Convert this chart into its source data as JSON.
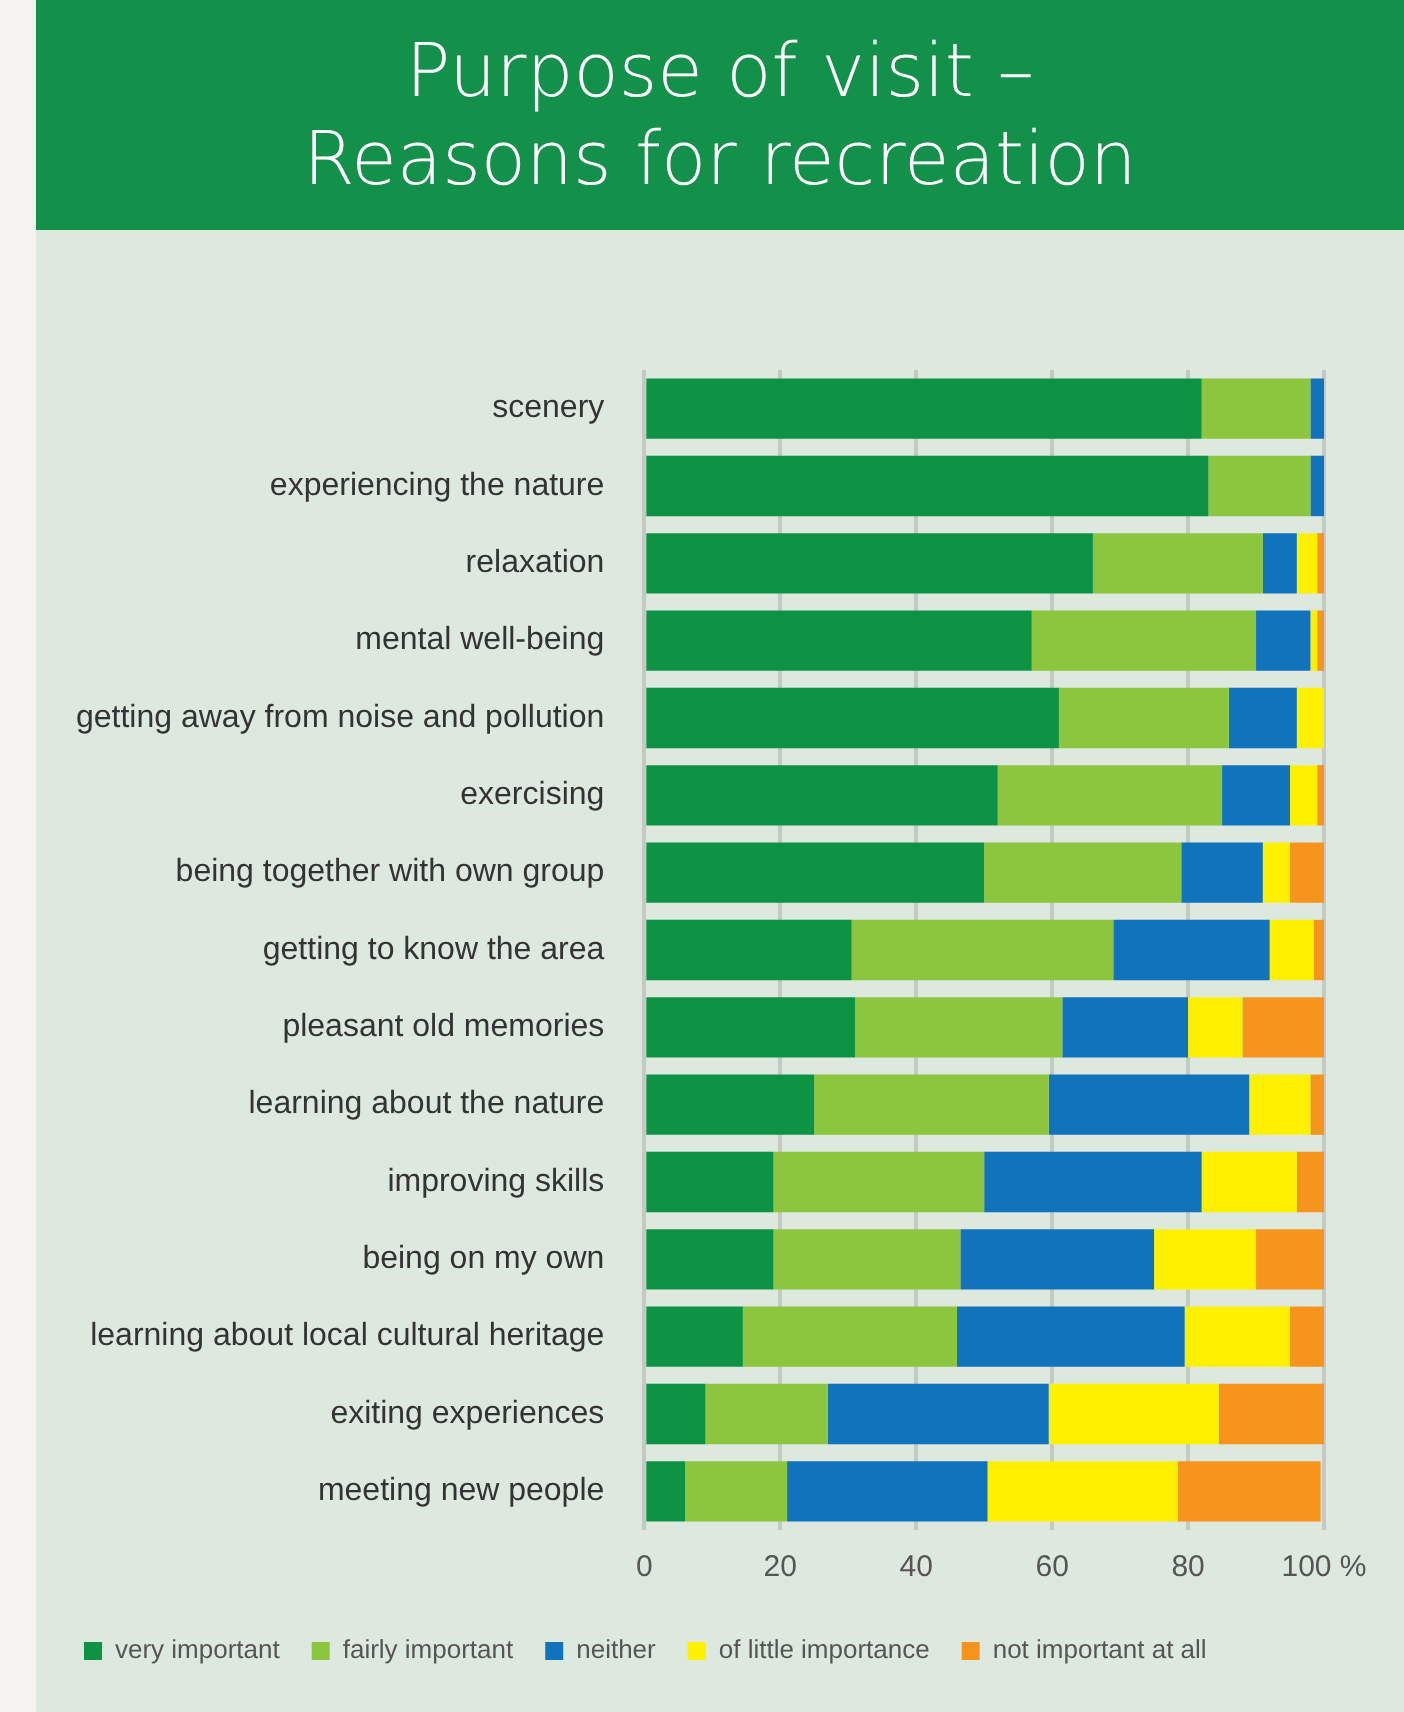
{
  "chart_data": {
    "type": "bar",
    "orientation": "horizontal",
    "stacked": true,
    "title": "Purpose of visit –\nReasons for recreation",
    "categories": [
      "scenery",
      "experiencing the nature",
      "relaxation",
      "mental well-being",
      "getting away from noise and pollution",
      "exercising",
      "being together with own group",
      "getting to know the area",
      "pleasant old memories",
      "learning about the nature",
      "improving skills",
      "being on my own",
      "learning about local cultural heritage",
      "exiting experiences",
      "meeting new people"
    ],
    "series": [
      {
        "name": "very important",
        "color": "#0e9344",
        "values": [
          82,
          83,
          66,
          57,
          61,
          52,
          50,
          30.5,
          31,
          25,
          19,
          19,
          14.5,
          9,
          6
        ]
      },
      {
        "name": "fairly important",
        "color": "#8cc63f",
        "values": [
          16,
          15,
          25,
          33,
          25,
          33,
          29,
          38.5,
          30.5,
          34.5,
          31,
          27.5,
          31.5,
          18,
          15
        ]
      },
      {
        "name": "neither",
        "color": "#1173bb",
        "values": [
          2,
          2,
          5,
          8,
          10,
          10,
          12,
          23,
          18.5,
          29.5,
          32,
          28.5,
          33.5,
          32.5,
          29.5
        ]
      },
      {
        "name": "of little importance",
        "color": "#fff000",
        "values": [
          0,
          0,
          3,
          1,
          4,
          4,
          4,
          6.5,
          8,
          9,
          14,
          15,
          15.5,
          25,
          28
        ]
      },
      {
        "name": "not important at all",
        "color": "#f7941d",
        "values": [
          0,
          0,
          1,
          1,
          0,
          1,
          5,
          1.5,
          12,
          2,
          4,
          10,
          5,
          15.5,
          21
        ]
      }
    ],
    "xlim": [
      0,
      100
    ],
    "xticks": [
      0,
      20,
      40,
      60,
      80,
      {
        "value": 100,
        "label": "100 %"
      }
    ],
    "grid": "x",
    "legend": "bottom"
  }
}
